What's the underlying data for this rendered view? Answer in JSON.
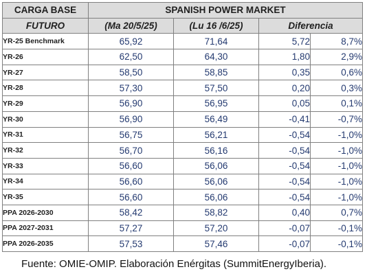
{
  "table": {
    "headers": {
      "carga_base": "CARGA BASE",
      "market": "SPANISH POWER MARKET",
      "futuro": "FUTURO",
      "date1": "(Ma 20/5/25)",
      "date2": "(Lu 16 /6/25)",
      "diferencia": "Diferencia"
    },
    "rows": [
      {
        "label": "YR-25 Benchmark",
        "v1": "65,92",
        "v2": "71,64",
        "diff": "5,72",
        "pct": "8,7%"
      },
      {
        "label": "YR-26",
        "v1": "62,50",
        "v2": "64,30",
        "diff": "1,80",
        "pct": "2,9%"
      },
      {
        "label": "YR-27",
        "v1": "58,50",
        "v2": "58,85",
        "diff": "0,35",
        "pct": "0,6%"
      },
      {
        "label": "YR-28",
        "v1": "57,30",
        "v2": "57,50",
        "diff": "0,20",
        "pct": "0,3%"
      },
      {
        "label": "YR-29",
        "v1": "56,90",
        "v2": "56,95",
        "diff": "0,05",
        "pct": "0,1%"
      },
      {
        "label": "YR-30",
        "v1": "56,90",
        "v2": "56,49",
        "diff": "-0,41",
        "pct": "-0,7%"
      },
      {
        "label": "YR-31",
        "v1": "56,75",
        "v2": "56,21",
        "diff": "-0,54",
        "pct": "-1,0%"
      },
      {
        "label": "YR-32",
        "v1": "56,70",
        "v2": "56,16",
        "diff": "-0,54",
        "pct": "-1,0%"
      },
      {
        "label": "YR-33",
        "v1": "56,60",
        "v2": "56,06",
        "diff": "-0,54",
        "pct": "-1,0%"
      },
      {
        "label": "YR-34",
        "v1": "56,60",
        "v2": "56,06",
        "diff": "-0,54",
        "pct": "-1,0%"
      },
      {
        "label": "YR-35",
        "v1": "56,60",
        "v2": "56,06",
        "diff": "-0,54",
        "pct": "-1,0%"
      },
      {
        "label": "PPA 2026-2030",
        "v1": "58,42",
        "v2": "58,82",
        "diff": "0,40",
        "pct": "0,7%"
      },
      {
        "label": "PPA 2027-2031",
        "v1": "57,27",
        "v2": "57,20",
        "diff": "-0,07",
        "pct": "-0,1%"
      },
      {
        "label": "PPA 2026-2035",
        "v1": "57,53",
        "v2": "57,46",
        "diff": "-0,07",
        "pct": "-0,1%"
      }
    ]
  },
  "source": "Fuente: OMIE-OMIP. Elaboración Enérgitas (SummitEnergyIberia)."
}
